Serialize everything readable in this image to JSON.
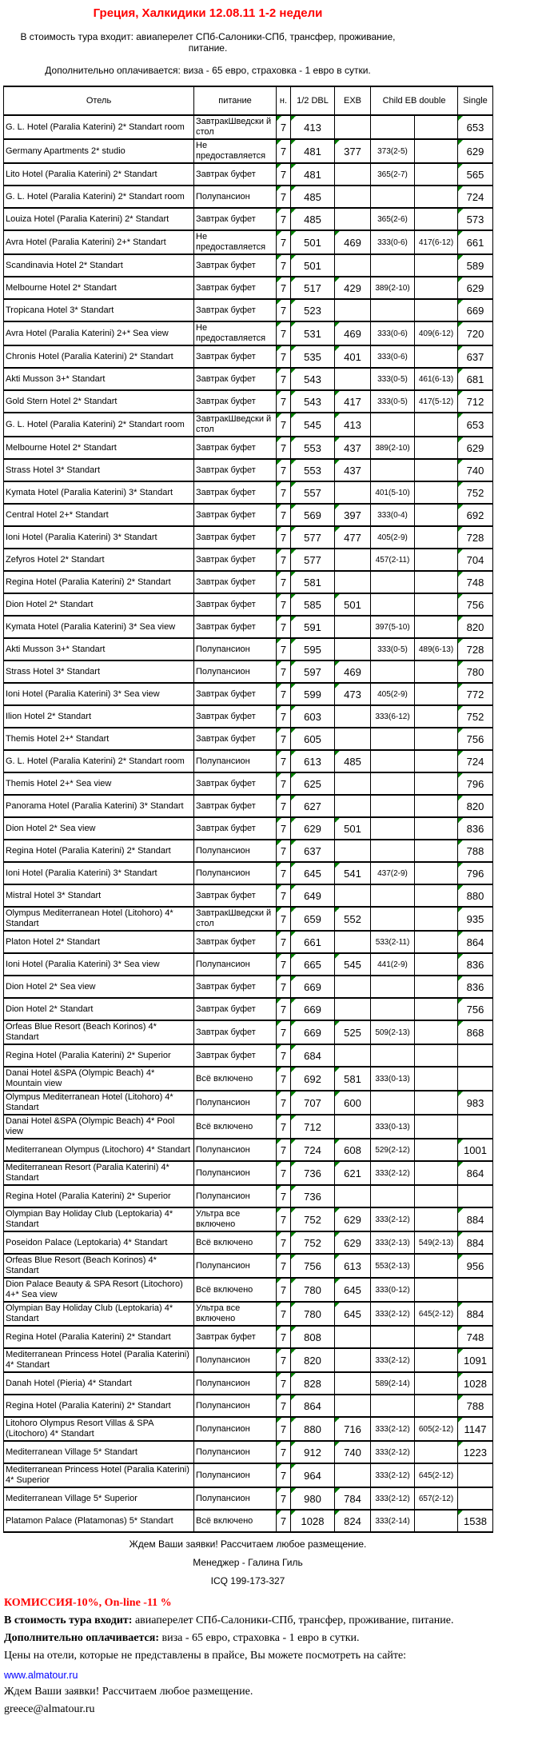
{
  "colors": {
    "title_red": "#FF0000",
    "commission_red": "#FF0000",
    "link_blue": "#0000FF",
    "comment_marker_green": "#008000",
    "border_black": "#000000"
  },
  "header": {
    "title": "Греция, Халкидики 12.08.11 1-2 недели",
    "included": "В стоимость тура входит: авиаперелет СПб-Салоники-СПб, трансфер, проживание, питание.",
    "surcharge": "Дополнительно оплачивается: виза - 65 евро, страховка - 1 евро в сутки."
  },
  "table": {
    "headers": {
      "hotel": "Отель",
      "meal": "питание",
      "nights": "н.",
      "dbl": "1/2 DBL",
      "exb": "EXB",
      "child": "Child EB double",
      "single": "Single"
    },
    "column_keys": [
      "hotel",
      "meal",
      "nights",
      "dbl",
      "exb",
      "child1",
      "child2",
      "single"
    ],
    "rows": [
      [
        "G. L. Hotel (Paralia Katerini) 2* Standart room",
        "ЗавтракШведски й стол",
        "7",
        "413",
        "",
        "",
        "",
        "653"
      ],
      [
        "Germany Apartments 2* studio",
        "Не предоставляется",
        "7",
        "481",
        "377",
        "373(2-5)",
        "",
        "629"
      ],
      [
        "Lito Hotel (Paralia Katerini) 2* Standart",
        "Завтрак буфет",
        "7",
        "481",
        "",
        "365(2-7)",
        "",
        "565"
      ],
      [
        "G. L. Hotel (Paralia Katerini) 2* Standart room",
        "Полупансион",
        "7",
        "485",
        "",
        "",
        "",
        "724"
      ],
      [
        "Louiza Hotel (Paralia Katerini) 2* Standart",
        "Завтрак буфет",
        "7",
        "485",
        "",
        "365(2-6)",
        "",
        "573"
      ],
      [
        "Avra Hotel (Paralia Katerini) 2+* Standart",
        "Не предоставляется",
        "7",
        "501",
        "469",
        "333(0-6)",
        "417(6-12)",
        "661"
      ],
      [
        "Scandinavia Hotel 2* Standart",
        "Завтрак буфет",
        "7",
        "501",
        "",
        "",
        "",
        "589"
      ],
      [
        "Melbourne Hotel 2* Standart",
        "Завтрак буфет",
        "7",
        "517",
        "429",
        "389(2-10)",
        "",
        "629"
      ],
      [
        "Tropicana Hotel 3* Standart",
        "Завтрак буфет",
        "7",
        "523",
        "",
        "",
        "",
        "669"
      ],
      [
        "Avra Hotel (Paralia Katerini) 2+* Sea view",
        "Не предоставляется",
        "7",
        "531",
        "469",
        "333(0-6)",
        "409(6-12)",
        "720"
      ],
      [
        "Chronis Hotel (Paralia Katerini) 2* Standart",
        "Завтрак буфет",
        "7",
        "535",
        "401",
        "333(0-6)",
        "",
        "637"
      ],
      [
        "Akti Musson 3+* Standart",
        "Завтрак буфет",
        "7",
        "543",
        "",
        "333(0-5)",
        "461(6-13)",
        "681"
      ],
      [
        "Gold Stern Hotel 2* Standart",
        "Завтрак буфет",
        "7",
        "543",
        "417",
        "333(0-5)",
        "417(5-12)",
        "712"
      ],
      [
        "G. L. Hotel (Paralia Katerini) 2* Standart room",
        "ЗавтракШведски й стол",
        "7",
        "545",
        "413",
        "",
        "",
        "653"
      ],
      [
        "Melbourne Hotel 2* Standart",
        "Завтрак буфет",
        "7",
        "553",
        "437",
        "389(2-10)",
        "",
        "629"
      ],
      [
        "Strass Hotel 3* Standart",
        "Завтрак буфет",
        "7",
        "553",
        "437",
        "",
        "",
        "740"
      ],
      [
        "Kymata Hotel (Paralia Katerini) 3* Standart",
        "Завтрак буфет",
        "7",
        "557",
        "",
        "401(5-10)",
        "",
        "752"
      ],
      [
        "Central Hotel 2+* Standart",
        "Завтрак буфет",
        "7",
        "569",
        "397",
        "333(0-4)",
        "",
        "692"
      ],
      [
        "Ioni Hotel (Paralia Katerini) 3* Standart",
        "Завтрак буфет",
        "7",
        "577",
        "477",
        "405(2-9)",
        "",
        "728"
      ],
      [
        "Zefyros Hotel 2* Standart",
        "Завтрак буфет",
        "7",
        "577",
        "",
        "457(2-11)",
        "",
        "704"
      ],
      [
        "Regina Hotel (Paralia Katerini) 2* Standart",
        "Завтрак буфет",
        "7",
        "581",
        "",
        "",
        "",
        "748"
      ],
      [
        "Dion Hotel 2* Standart",
        "Завтрак буфет",
        "7",
        "585",
        "501",
        "",
        "",
        "756"
      ],
      [
        "Kymata Hotel (Paralia Katerini) 3* Sea view",
        "Завтрак буфет",
        "7",
        "591",
        "",
        "397(5-10)",
        "",
        "820"
      ],
      [
        "Akti Musson 3+* Standart",
        "Полупансион",
        "7",
        "595",
        "",
        "333(0-5)",
        "489(6-13)",
        "728"
      ],
      [
        "Strass Hotel 3* Standart",
        "Полупансион",
        "7",
        "597",
        "469",
        "",
        "",
        "780"
      ],
      [
        "Ioni Hotel (Paralia Katerini) 3* Sea view",
        "Завтрак буфет",
        "7",
        "599",
        "473",
        "405(2-9)",
        "",
        "772"
      ],
      [
        "Ilion Hotel 2* Standart",
        "Завтрак буфет",
        "7",
        "603",
        "",
        "333(6-12)",
        "",
        "752"
      ],
      [
        "Themis Hotel 2+* Standart",
        "Завтрак буфет",
        "7",
        "605",
        "",
        "",
        "",
        "756"
      ],
      [
        "G. L. Hotel (Paralia Katerini) 2* Standart room",
        "Полупансион",
        "7",
        "613",
        "485",
        "",
        "",
        "724"
      ],
      [
        "Themis Hotel 2+* Sea view",
        "Завтрак буфет",
        "7",
        "625",
        "",
        "",
        "",
        "796"
      ],
      [
        "Panorama Hotel (Paralia Katerini) 3* Standart",
        "Завтрак буфет",
        "7",
        "627",
        "",
        "",
        "",
        "820"
      ],
      [
        "Dion Hotel 2* Sea view",
        "Завтрак буфет",
        "7",
        "629",
        "501",
        "",
        "",
        "836"
      ],
      [
        "Regina Hotel (Paralia Katerini) 2* Standart",
        "Полупансион",
        "7",
        "637",
        "",
        "",
        "",
        "788"
      ],
      [
        "Ioni Hotel (Paralia Katerini) 3* Standart",
        "Полупансион",
        "7",
        "645",
        "541",
        "437(2-9)",
        "",
        "796"
      ],
      [
        "Mistral Hotel 3* Standart",
        "Завтрак буфет",
        "7",
        "649",
        "",
        "",
        "",
        "880"
      ],
      [
        "Olympus Mediterranean Hotel (Litohoro) 4* Standart",
        "ЗавтракШведски й стол",
        "7",
        "659",
        "552",
        "",
        "",
        "935"
      ],
      [
        "Platon Hotel 2* Standart",
        "Завтрак буфет",
        "7",
        "661",
        "",
        "533(2-11)",
        "",
        "864"
      ],
      [
        "Ioni Hotel (Paralia Katerini) 3* Sea view",
        "Полупансион",
        "7",
        "665",
        "545",
        "441(2-9)",
        "",
        "836"
      ],
      [
        "Dion Hotel 2* Sea view",
        "Завтрак буфет",
        "7",
        "669",
        "",
        "",
        "",
        "836"
      ],
      [
        "Dion Hotel 2* Standart",
        "Завтрак буфет",
        "7",
        "669",
        "",
        "",
        "",
        "756"
      ],
      [
        "Orfeas Blue Resort (Beach Korinos) 4* Standart",
        "Завтрак буфет",
        "7",
        "669",
        "525",
        "509(2-13)",
        "",
        "868"
      ],
      [
        "Regina Hotel (Paralia Katerini) 2* Superior",
        "Завтрак буфет",
        "7",
        "684",
        "",
        "",
        "",
        ""
      ],
      [
        "Danai Hotel &SPA (Olympic Beach) 4* Mountain view",
        "Всё включено",
        "7",
        "692",
        "581",
        "333(0-13)",
        "",
        ""
      ],
      [
        "Olympus Mediterranean Hotel (Litohoro) 4* Standart",
        "Полупансион",
        "7",
        "707",
        "600",
        "",
        "",
        "983"
      ],
      [
        "Danai Hotel &SPA (Olympic Beach) 4* Pool view",
        "Всё включено",
        "7",
        "712",
        "",
        "333(0-13)",
        "",
        ""
      ],
      [
        "Mediterranean Olympus (Litochoro) 4* Standart",
        "Полупансион",
        "7",
        "724",
        "608",
        "529(2-12)",
        "",
        "1001"
      ],
      [
        "Mediterranean Resort (Paralia Katerini) 4* Standart",
        "Полупансион",
        "7",
        "736",
        "621",
        "333(2-12)",
        "",
        "864"
      ],
      [
        "Regina Hotel (Paralia Katerini) 2* Superior",
        "Полупансион",
        "7",
        "736",
        "",
        "",
        "",
        ""
      ],
      [
        "Olympian Bay Holiday Club (Leptokaria) 4* Standart",
        "Ультра все включено",
        "7",
        "752",
        "629",
        "333(2-12)",
        "",
        "884"
      ],
      [
        "Poseidon Palace (Leptokaria) 4* Standart",
        "Всё включено",
        "7",
        "752",
        "629",
        "333(2-13)",
        "549(2-13)",
        "884"
      ],
      [
        "Orfeas Blue Resort (Beach Korinos) 4* Standart",
        "Полупансион",
        "7",
        "756",
        "613",
        "553(2-13)",
        "",
        "956"
      ],
      [
        "Dion Palace Beauty & SPA Resort (Litochoro) 4+* Sea view",
        "Всё включено",
        "7",
        "780",
        "645",
        "333(0-12)",
        "",
        ""
      ],
      [
        "Olympian Bay Holiday Club (Leptokaria) 4* Standart",
        "Ультра все включено",
        "7",
        "780",
        "645",
        "333(2-12)",
        "645(2-12)",
        "884"
      ],
      [
        "Regina Hotel (Paralia Katerini) 2* Standart",
        "Завтрак буфет",
        "7",
        "808",
        "",
        "",
        "",
        "748"
      ],
      [
        "Mediterranean Princess Hotel (Paralia Katerini) 4* Standart",
        "Полупансион",
        "7",
        "820",
        "",
        "333(2-12)",
        "",
        "1091"
      ],
      [
        "Danah Hotel (Pieria) 4* Standart",
        "Полупансион",
        "7",
        "828",
        "",
        "589(2-14)",
        "",
        "1028"
      ],
      [
        "Regina Hotel (Paralia Katerini) 2* Standart",
        "Полупансион",
        "7",
        "864",
        "",
        "",
        "",
        "788"
      ],
      [
        "Litohoro Olympus Resort Villas & SPA (Litochoro) 4* Standart",
        "Полупансион",
        "7",
        "880",
        "716",
        "333(2-12)",
        "605(2-12)",
        "1147"
      ],
      [
        "Mediterranean Village 5* Standart",
        "Полупансион",
        "7",
        "912",
        "740",
        "333(2-12)",
        "",
        "1223"
      ],
      [
        "Mediterranean Princess Hotel (Paralia Katerini) 4* Superior",
        "Полупансион",
        "7",
        "964",
        "",
        "333(2-12)",
        "645(2-12)",
        ""
      ],
      [
        "Mediterranean Village 5* Superior",
        "Полупансион",
        "7",
        "980",
        "784",
        "333(2-12)",
        "657(2-12)",
        ""
      ],
      [
        "Platamon Palace (Platamonas) 5* Standart",
        "Всё включено",
        "7",
        "1028",
        "824",
        "333(2-14)",
        "",
        "1538"
      ]
    ]
  },
  "footer": {
    "requests": "Ждем Ваши заявки! Рассчитаем любое размещение.",
    "manager": "Менеджер - Галина Гиль",
    "icq": "ICQ 199-173-327",
    "commission": "КОМИССИЯ-10%, On-line -11 %",
    "included_label": "В стоимость тура входит:",
    "included_text": " авиаперелет СПб-Салоники-СПб, трансфер, проживание, питание.",
    "surcharge_label": "Дополнительно оплачивается:",
    "surcharge_text": " виза - 65 евро, страховка - 1 евро в сутки.",
    "site_note": "Цены на отели, которые не представлены в прайсе, Вы  можете посмотреть на сайте:",
    "site_url": "www.almatour.ru",
    "requests2": "Ждем Ваши заявки! Рассчитаем любое размещение.",
    "email": "greece@almatour.ru"
  }
}
